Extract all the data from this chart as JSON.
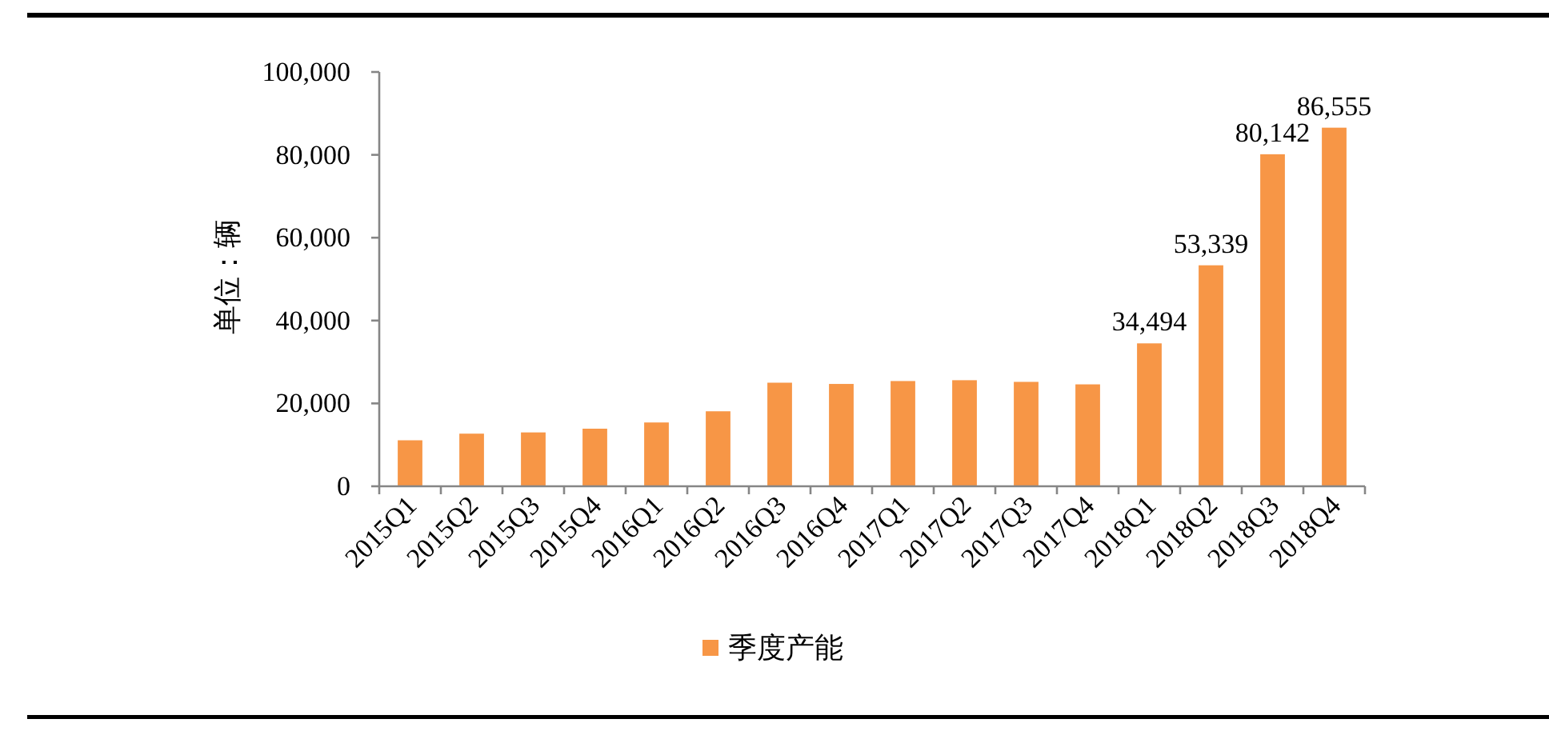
{
  "chart_data": {
    "type": "bar",
    "ylabel": "单位：辆",
    "categories": [
      "2015Q1",
      "2015Q2",
      "2015Q3",
      "2015Q4",
      "2016Q1",
      "2016Q2",
      "2016Q3",
      "2016Q4",
      "2017Q1",
      "2017Q2",
      "2017Q3",
      "2017Q4",
      "2018Q1",
      "2018Q2",
      "2018Q3",
      "2018Q4"
    ],
    "series": [
      {
        "name": "季度产能",
        "color": "#f79646",
        "values": [
          11100,
          12700,
          13000,
          13900,
          15400,
          18100,
          25000,
          24700,
          25400,
          25600,
          25200,
          24600,
          34494,
          53339,
          80142,
          86555
        ],
        "value_labels": [
          null,
          null,
          null,
          null,
          null,
          null,
          null,
          null,
          null,
          null,
          null,
          null,
          "34,494",
          "53,339",
          "80,142",
          "86,555"
        ]
      }
    ],
    "ylim": [
      0,
      100000
    ],
    "yticks": [
      0,
      {
        "value": 20000,
        "label": "20,000"
      },
      {
        "value": 40000,
        "label": "40,000"
      },
      {
        "value": 60000,
        "label": "60,000"
      },
      {
        "value": 80000,
        "label": "80,000"
      },
      {
        "value": 100000,
        "label": "100,000"
      }
    ],
    "legend": "bottom"
  }
}
